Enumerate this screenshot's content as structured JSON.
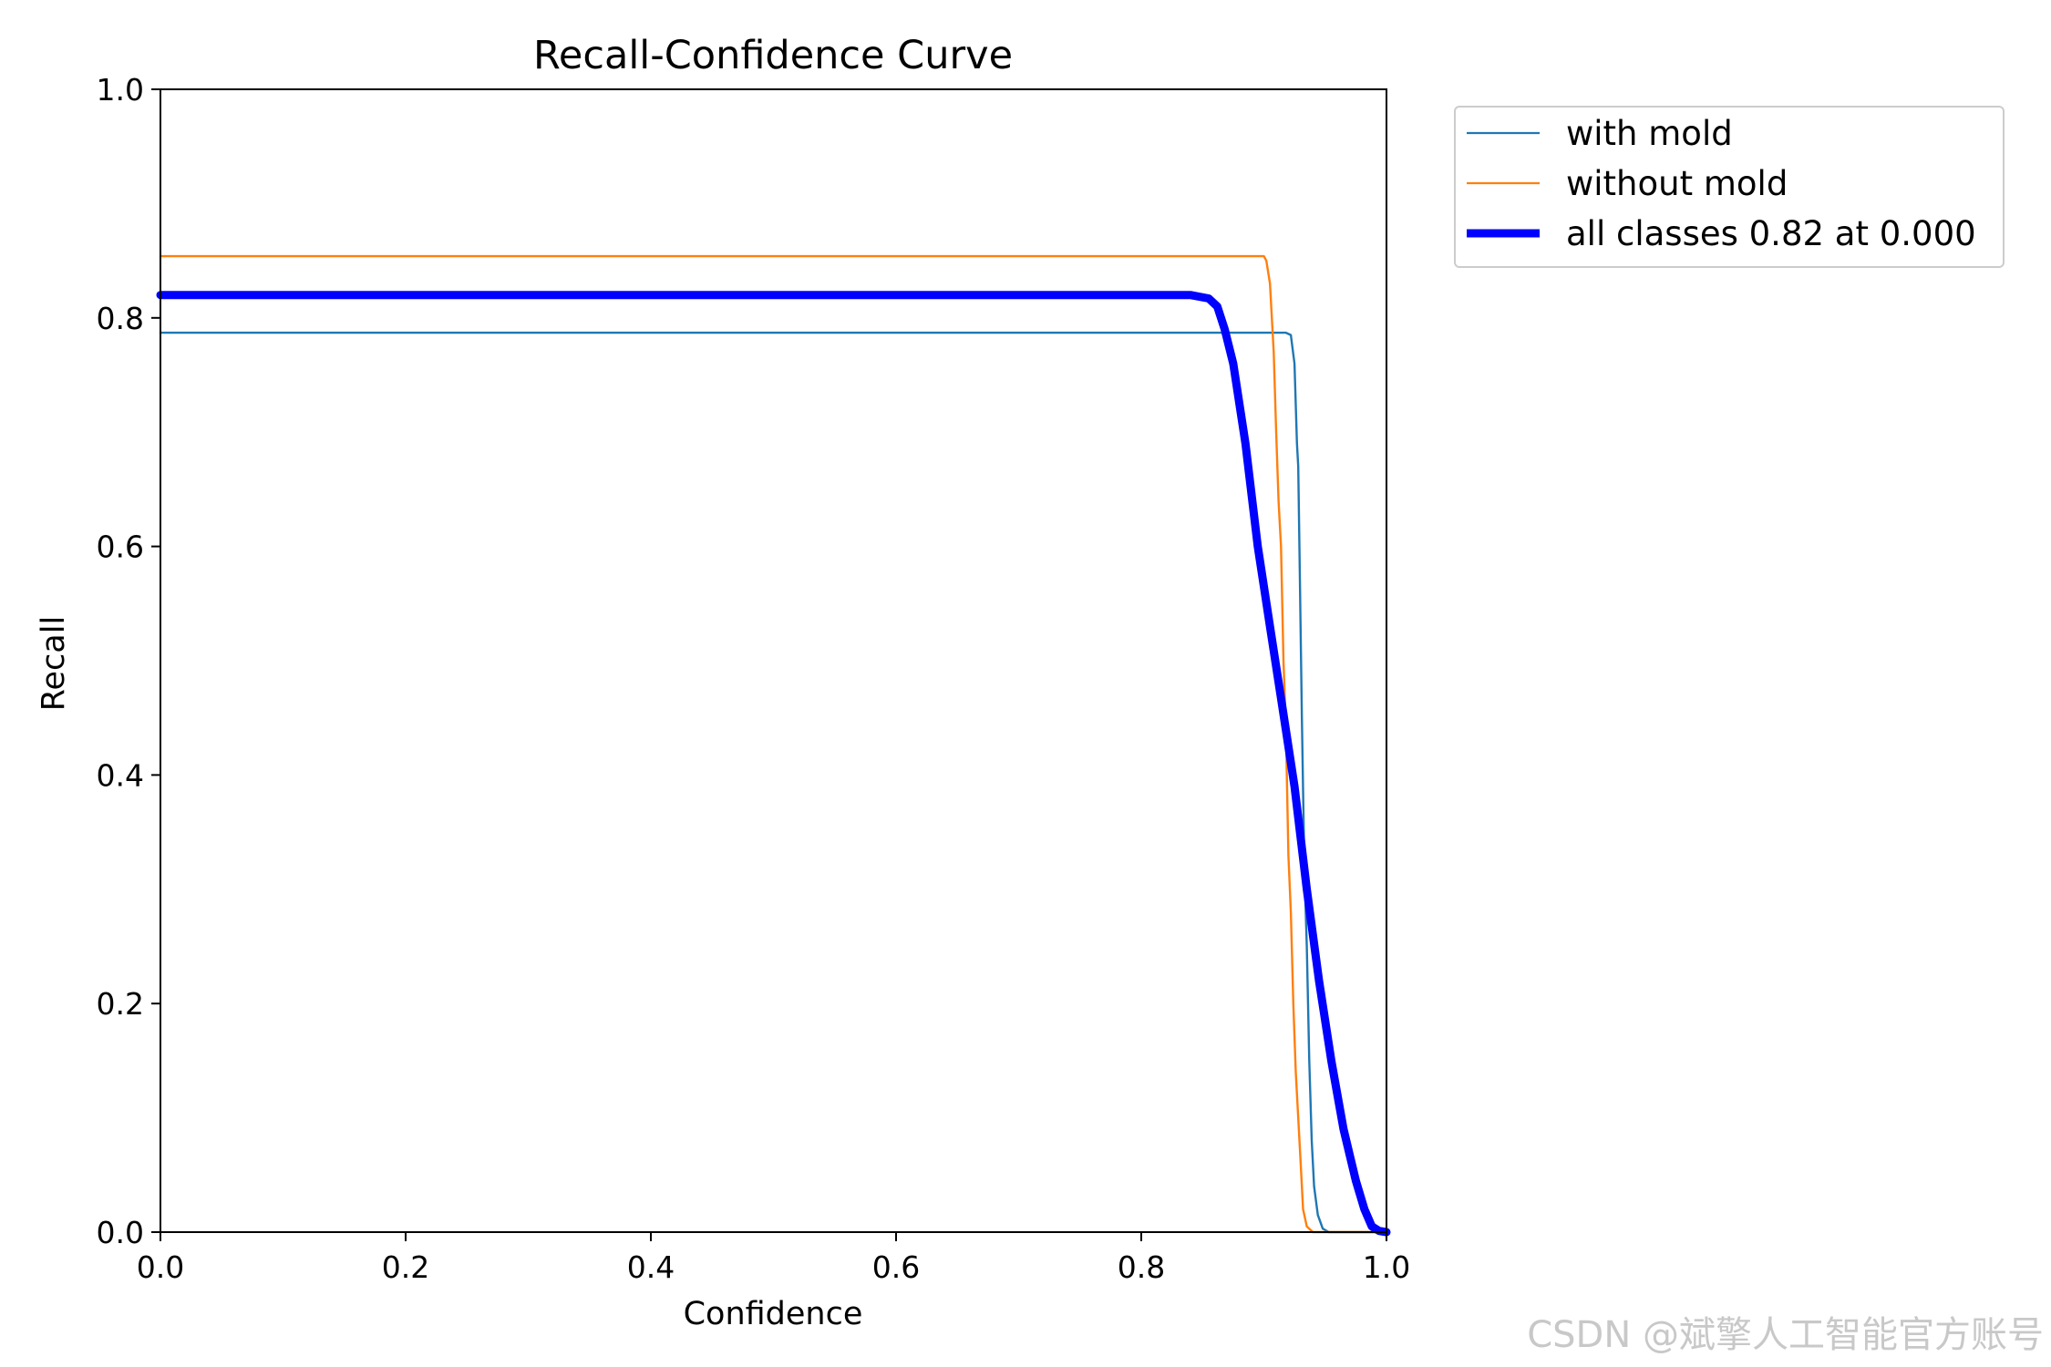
{
  "chart_data": {
    "type": "line",
    "title": "Recall-Confidence Curve",
    "xlabel": "Confidence",
    "ylabel": "Recall",
    "xlim": [
      0,
      1
    ],
    "ylim": [
      0,
      1
    ],
    "xticks": [
      "0.0",
      "0.2",
      "0.4",
      "0.6",
      "0.8",
      "1.0"
    ],
    "yticks": [
      "0.0",
      "0.2",
      "0.4",
      "0.6",
      "0.8",
      "1.0"
    ],
    "grid": false,
    "legend_position": "outside-top-right",
    "series": [
      {
        "name": "with mold",
        "color": "#1f77b4",
        "line_style": "thin",
        "x": [
          0.0,
          0.3,
          0.6,
          0.9,
          0.918,
          0.922,
          0.925,
          0.927,
          0.928,
          0.929,
          0.931,
          0.933,
          0.935,
          0.937,
          0.939,
          0.941,
          0.944,
          0.948,
          0.953,
          0.96,
          1.0
        ],
        "y": [
          0.787,
          0.787,
          0.787,
          0.787,
          0.787,
          0.785,
          0.76,
          0.69,
          0.67,
          0.6,
          0.45,
          0.32,
          0.25,
          0.15,
          0.08,
          0.04,
          0.015,
          0.003,
          0.0,
          0.0,
          0.0
        ]
      },
      {
        "name": "without mold",
        "color": "#ff7f0e",
        "line_style": "thin",
        "x": [
          0.0,
          0.3,
          0.6,
          0.9,
          0.902,
          0.905,
          0.908,
          0.91,
          0.912,
          0.914,
          0.916,
          0.918,
          0.92,
          0.922,
          0.924,
          0.926,
          0.928,
          0.93,
          0.932,
          0.935,
          0.94,
          0.95,
          1.0
        ],
        "y": [
          0.854,
          0.854,
          0.854,
          0.854,
          0.85,
          0.83,
          0.77,
          0.7,
          0.64,
          0.6,
          0.5,
          0.44,
          0.33,
          0.28,
          0.2,
          0.14,
          0.1,
          0.06,
          0.02,
          0.005,
          0.0,
          0.0,
          0.0
        ]
      },
      {
        "name": "all classes 0.82 at 0.000",
        "color": "#0000ff",
        "line_style": "thick",
        "x": [
          0.0,
          0.3,
          0.6,
          0.84,
          0.855,
          0.862,
          0.868,
          0.875,
          0.885,
          0.895,
          0.905,
          0.915,
          0.925,
          0.935,
          0.945,
          0.955,
          0.965,
          0.975,
          0.982,
          0.988,
          0.994,
          1.0
        ],
        "y": [
          0.82,
          0.82,
          0.82,
          0.82,
          0.817,
          0.81,
          0.79,
          0.76,
          0.69,
          0.6,
          0.53,
          0.46,
          0.39,
          0.3,
          0.22,
          0.15,
          0.09,
          0.045,
          0.02,
          0.005,
          0.001,
          0.0
        ]
      }
    ]
  },
  "watermark": "CSDN @斌擎人工智能官方账号"
}
